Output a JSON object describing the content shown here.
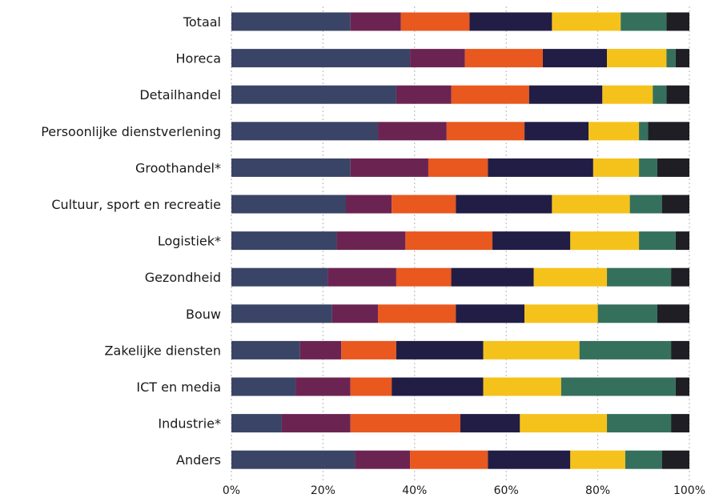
{
  "chart_data": {
    "type": "bar",
    "orientation": "horizontal",
    "stacked": true,
    "normalized": true,
    "title": "",
    "xlabel": "",
    "ylabel": "",
    "xlim": [
      0,
      100
    ],
    "x_ticks": [
      "0%",
      "20%",
      "40%",
      "60%",
      "80%",
      "100%"
    ],
    "grid": true,
    "legend": "none",
    "categories": [
      "Totaal",
      "Horeca",
      "Detailhandel",
      "Persoonlijke dienstverlening",
      "Groothandel*",
      "Cultuur, sport en recreatie",
      "Logistiek*",
      "Gezondheid",
      "Bouw",
      "Zakelijke diensten",
      "ICT en media",
      "Industrie*",
      "Anders"
    ],
    "series": [
      {
        "color": "#3a4466",
        "values": [
          26,
          39,
          36,
          32,
          26,
          25,
          23,
          21,
          22,
          15,
          14,
          11,
          27
        ]
      },
      {
        "color": "#6b2452",
        "values": [
          11,
          12,
          12,
          15,
          17,
          10,
          15,
          15,
          10,
          9,
          12,
          15,
          12
        ]
      },
      {
        "color": "#e8581f",
        "values": [
          15,
          17,
          17,
          17,
          13,
          14,
          19,
          12,
          17,
          12,
          9,
          24,
          17
        ]
      },
      {
        "color": "#221d45",
        "values": [
          18,
          14,
          16,
          14,
          23,
          21,
          17,
          18,
          15,
          19,
          20,
          13,
          18
        ]
      },
      {
        "color": "#f5c21b",
        "values": [
          15,
          13,
          11,
          11,
          10,
          17,
          15,
          16,
          16,
          21,
          17,
          19,
          12
        ]
      },
      {
        "color": "#35705c",
        "values": [
          10,
          2,
          3,
          2,
          4,
          7,
          8,
          14,
          13,
          20,
          25,
          14,
          8
        ]
      },
      {
        "color": "#1e1e24",
        "values": [
          5,
          3,
          5,
          9,
          7,
          6,
          3,
          4,
          7,
          4,
          3,
          4,
          6
        ]
      }
    ]
  }
}
